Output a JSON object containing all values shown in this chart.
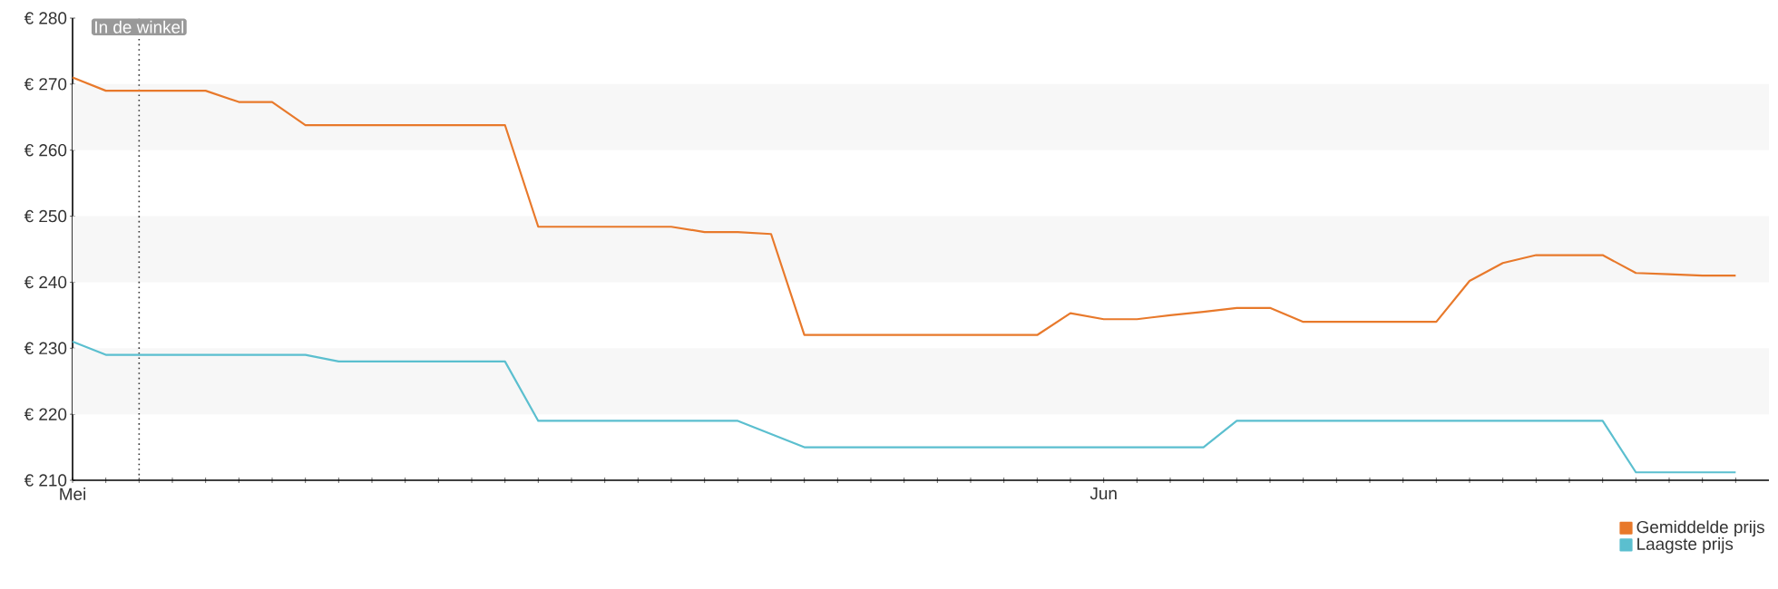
{
  "chart_data": {
    "type": "line",
    "categories": [
      "Mei",
      null,
      null,
      null,
      null,
      null,
      null,
      null,
      null,
      null,
      null,
      null,
      null,
      null,
      null,
      null,
      null,
      null,
      null,
      null,
      null,
      null,
      null,
      null,
      null,
      null,
      null,
      null,
      null,
      null,
      null,
      "Jun",
      null,
      null,
      null,
      null,
      null,
      null,
      null,
      null,
      null,
      null,
      null,
      null,
      null,
      null,
      null,
      null,
      null,
      null,
      null
    ],
    "ylim": [
      210,
      280
    ],
    "yticks": [
      {
        "value": 210,
        "label": "€ 210"
      },
      {
        "value": 220,
        "label": "€ 220"
      },
      {
        "value": 230,
        "label": "€ 230"
      },
      {
        "value": 240,
        "label": "€ 240"
      },
      {
        "value": 250,
        "label": "€ 250"
      },
      {
        "value": 260,
        "label": "€ 260"
      },
      {
        "value": 270,
        "label": "€ 270"
      },
      {
        "value": 280,
        "label": "€ 280"
      }
    ],
    "series": [
      {
        "name": "Gemiddelde prijs",
        "color": "#e8792b",
        "values": [
          271,
          269,
          269,
          269,
          269,
          267.3,
          267.3,
          263.8,
          263.8,
          263.8,
          263.8,
          263.8,
          263.8,
          263.8,
          248.4,
          248.4,
          248.4,
          248.4,
          248.4,
          247.6,
          247.6,
          247.3,
          232,
          232,
          232,
          232,
          232,
          232,
          232,
          232,
          235.3,
          234.4,
          234.4,
          235,
          235.5,
          236.1,
          236.1,
          234,
          234,
          234,
          234,
          234,
          240.2,
          242.9,
          244.1,
          244.1,
          244.1,
          241.4,
          241.2,
          241,
          241
        ]
      },
      {
        "name": "Laagste prijs",
        "color": "#5bbfcf",
        "values": [
          231,
          229,
          229,
          229,
          229,
          229,
          229,
          229,
          228,
          228,
          228,
          228,
          228,
          228,
          219,
          219,
          219,
          219,
          219,
          219,
          219,
          217,
          215,
          215,
          215,
          215,
          215,
          215,
          215,
          215,
          215,
          215,
          215,
          215,
          215,
          219,
          219,
          219,
          219,
          219,
          219,
          219,
          219,
          219,
          219,
          219,
          219,
          211.2,
          211.2,
          211.2,
          211.2
        ]
      }
    ],
    "line_style": "solid",
    "bands": [
      {
        "axis": "y",
        "from": 220,
        "to": 230,
        "color": "#f7f7f7"
      },
      {
        "axis": "y",
        "from": 240,
        "to": 250,
        "color": "#f7f7f7"
      },
      {
        "axis": "y",
        "from": 260,
        "to": 270,
        "color": "#f7f7f7"
      }
    ],
    "annotations": [
      "In de winkel"
    ],
    "legend": "bottom right"
  }
}
